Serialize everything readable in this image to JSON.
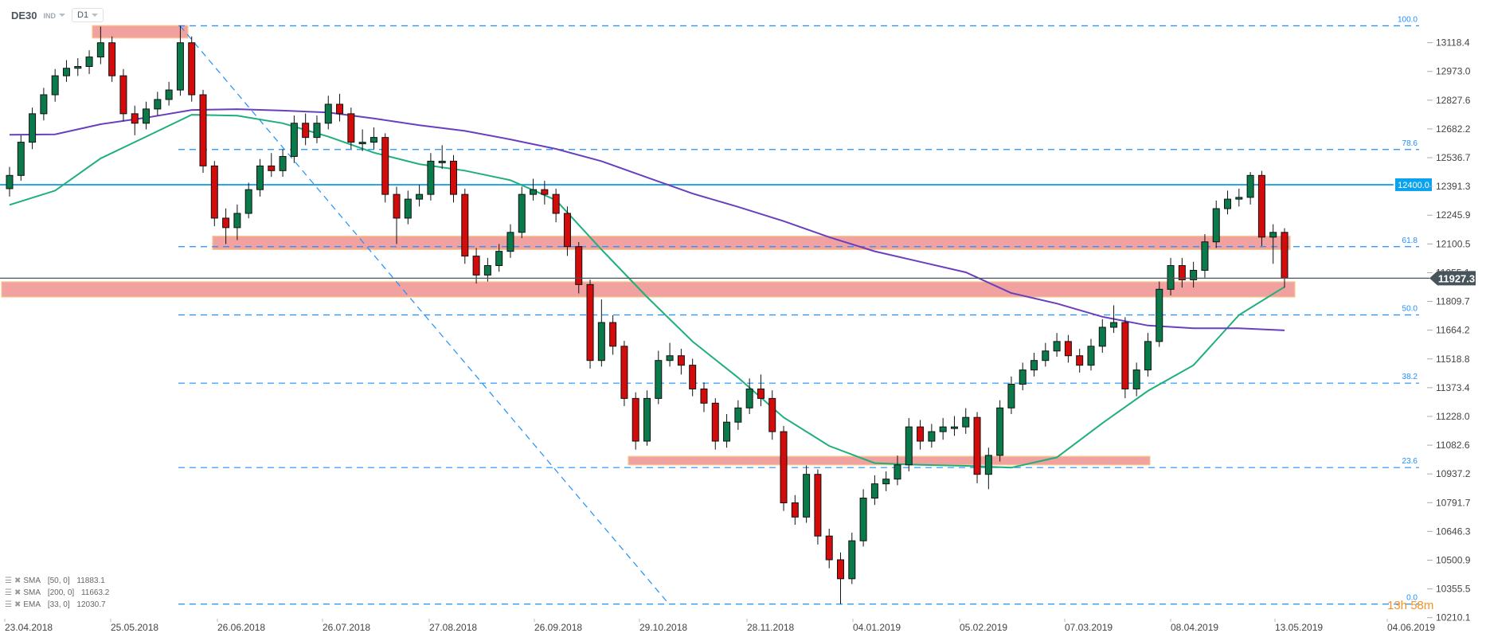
{
  "header": {
    "symbol": "DE30",
    "market": "IND",
    "timeframe": "D1"
  },
  "indicators": [
    {
      "label": "SMA",
      "params": "[50,  0]",
      "value": "11883.1",
      "color": "#1fb07a"
    },
    {
      "label": "SMA",
      "params": "[200,  0]",
      "value": "11663.2",
      "color": "#6a3fbf"
    },
    {
      "label": "EMA",
      "params": "[33,  0]",
      "value": "12030.7"
    }
  ],
  "countdown": "13h 58m",
  "colors": {
    "up": "#0b7a4b",
    "down": "#d30b0b",
    "fib": "#1e90ff",
    "level": "#29a9e8",
    "zone": "#f09c9a",
    "zone_border": "#f7c98a",
    "price_tag": "#47545c"
  },
  "chart_data": {
    "type": "candlestick",
    "title": "",
    "xlabel": "",
    "ylabel": "",
    "ylim": [
      10210.1,
      13118.4
    ],
    "grid": false,
    "x_tick_labels": [
      "23.04.2018",
      "25.05.2018",
      "26.06.2018",
      "26.07.2018",
      "27.08.2018",
      "26.09.2018",
      "29.10.2018",
      "28.11.2018",
      "04.01.2019",
      "05.02.2019",
      "07.03.2019",
      "08.04.2019",
      "13.05.2019",
      "04.06.2019"
    ],
    "y_tick_labels": [
      "13118.4",
      "12973.0",
      "12827.6",
      "12682.2",
      "12536.7",
      "12391.3",
      "12245.9",
      "12100.5",
      "11955.1",
      "11809.7",
      "11664.2",
      "11518.8",
      "11373.4",
      "11228.0",
      "11082.6",
      "10937.2",
      "10791.7",
      "10646.3",
      "10500.9",
      "10355.5",
      "10210.1"
    ],
    "current_price": "11927.3",
    "horizontal_level": {
      "value": 12400.0,
      "label": "12400.0"
    },
    "fibonacci": {
      "high": 13204,
      "low": 10279,
      "levels": [
        {
          "ratio": 1.0,
          "label": "100.0"
        },
        {
          "ratio": 0.786,
          "label": "78.6"
        },
        {
          "ratio": 0.618,
          "label": "61.8"
        },
        {
          "ratio": 0.5,
          "label": "50.0"
        },
        {
          "ratio": 0.382,
          "label": "38.2"
        },
        {
          "ratio": 0.236,
          "label": "23.6"
        },
        {
          "ratio": 0.0,
          "label": "0.0"
        }
      ]
    },
    "zones": [
      {
        "from": 13142,
        "to": 13205
      },
      {
        "from": 12072,
        "to": 12140
      },
      {
        "from": 11832,
        "to": 11909
      },
      {
        "from": 10983,
        "to": 11026
      }
    ],
    "ohlc": [
      [
        12380,
        12490,
        12340,
        12447
      ],
      [
        12447,
        12650,
        12420,
        12615
      ],
      [
        12615,
        12790,
        12580,
        12759
      ],
      [
        12759,
        12890,
        12725,
        12855
      ],
      [
        12855,
        12985,
        12820,
        12951
      ],
      [
        12951,
        13030,
        12920,
        12989
      ],
      [
        12989,
        13040,
        12950,
        12998
      ],
      [
        12998,
        13080,
        12960,
        13046
      ],
      [
        13046,
        13200,
        13010,
        13118
      ],
      [
        13118,
        13150,
        12920,
        12951
      ],
      [
        12951,
        12985,
        12720,
        12759
      ],
      [
        12759,
        12800,
        12650,
        12711
      ],
      [
        12711,
        12820,
        12680,
        12783
      ],
      [
        12783,
        12870,
        12750,
        12831
      ],
      [
        12831,
        12920,
        12800,
        12879
      ],
      [
        12879,
        13204,
        12850,
        13118
      ],
      [
        13118,
        13150,
        12820,
        12855
      ],
      [
        12855,
        12880,
        12460,
        12495
      ],
      [
        12495,
        12520,
        12190,
        12231
      ],
      [
        12231,
        12280,
        12100,
        12183
      ],
      [
        12183,
        12300,
        12120,
        12255
      ],
      [
        12255,
        12410,
        12230,
        12375
      ],
      [
        12375,
        12530,
        12340,
        12495
      ],
      [
        12495,
        12560,
        12440,
        12471
      ],
      [
        12471,
        12580,
        12440,
        12543
      ],
      [
        12543,
        12750,
        12510,
        12711
      ],
      [
        12711,
        12760,
        12600,
        12639
      ],
      [
        12639,
        12750,
        12610,
        12711
      ],
      [
        12711,
        12850,
        12680,
        12807
      ],
      [
        12807,
        12860,
        12720,
        12759
      ],
      [
        12759,
        12790,
        12580,
        12615
      ],
      [
        12615,
        12680,
        12570,
        12615
      ],
      [
        12615,
        12690,
        12580,
        12639
      ],
      [
        12639,
        12660,
        12310,
        12351
      ],
      [
        12351,
        12390,
        12100,
        12231
      ],
      [
        12231,
        12370,
        12200,
        12327
      ],
      [
        12327,
        12400,
        12290,
        12351
      ],
      [
        12351,
        12560,
        12320,
        12519
      ],
      [
        12519,
        12600,
        12480,
        12519
      ],
      [
        12519,
        12550,
        12310,
        12351
      ],
      [
        12351,
        12380,
        12000,
        12039
      ],
      [
        12039,
        12080,
        11900,
        11943
      ],
      [
        11943,
        12030,
        11910,
        11991
      ],
      [
        11991,
        12100,
        11960,
        12063
      ],
      [
        12063,
        12200,
        12030,
        12159
      ],
      [
        12159,
        12390,
        12130,
        12351
      ],
      [
        12351,
        12430,
        12320,
        12375
      ],
      [
        12375,
        12420,
        12300,
        12351
      ],
      [
        12351,
        12380,
        12210,
        12255
      ],
      [
        12255,
        12290,
        12040,
        12087
      ],
      [
        12087,
        12110,
        11850,
        11895
      ],
      [
        11895,
        11920,
        11470,
        11511
      ],
      [
        11511,
        11820,
        11480,
        11703
      ],
      [
        11703,
        11740,
        11540,
        11583
      ],
      [
        11583,
        11610,
        11280,
        11319
      ],
      [
        11319,
        11350,
        11060,
        11103
      ],
      [
        11103,
        11360,
        11080,
        11319
      ],
      [
        11319,
        11560,
        11290,
        11511
      ],
      [
        11511,
        11600,
        11480,
        11535
      ],
      [
        11535,
        11570,
        11440,
        11487
      ],
      [
        11487,
        11520,
        11330,
        11367
      ],
      [
        11367,
        11400,
        11250,
        11295
      ],
      [
        11295,
        11320,
        11060,
        11103
      ],
      [
        11103,
        11240,
        11070,
        11199
      ],
      [
        11199,
        11310,
        11160,
        11271
      ],
      [
        11271,
        11420,
        11240,
        11367
      ],
      [
        11367,
        11440,
        11280,
        11319
      ],
      [
        11319,
        11360,
        11110,
        11151
      ],
      [
        11151,
        11180,
        10750,
        10791
      ],
      [
        10791,
        10830,
        10680,
        10719
      ],
      [
        10719,
        10980,
        10690,
        10935
      ],
      [
        10935,
        10960,
        10580,
        10623
      ],
      [
        10623,
        10660,
        10460,
        10503
      ],
      [
        10503,
        10540,
        10279,
        10407
      ],
      [
        10407,
        10640,
        10380,
        10599
      ],
      [
        10599,
        10860,
        10570,
        10815
      ],
      [
        10815,
        10930,
        10780,
        10887
      ],
      [
        10887,
        10950,
        10850,
        10911
      ],
      [
        10911,
        11030,
        10880,
        10983
      ],
      [
        10983,
        11220,
        10950,
        11175
      ],
      [
        11175,
        11210,
        11060,
        11103
      ],
      [
        11103,
        11190,
        11070,
        11151
      ],
      [
        11151,
        11220,
        11110,
        11175
      ],
      [
        11175,
        11230,
        11130,
        11175
      ],
      [
        11175,
        11270,
        11140,
        11223
      ],
      [
        11223,
        11250,
        10890,
        10935
      ],
      [
        10935,
        11070,
        10860,
        11031
      ],
      [
        11031,
        11310,
        11000,
        11271
      ],
      [
        11271,
        11430,
        11240,
        11391
      ],
      [
        11391,
        11500,
        11360,
        11463
      ],
      [
        11463,
        11550,
        11430,
        11511
      ],
      [
        11511,
        11600,
        11480,
        11559
      ],
      [
        11559,
        11650,
        11530,
        11607
      ],
      [
        11607,
        11640,
        11500,
        11535
      ],
      [
        11535,
        11570,
        11450,
        11487
      ],
      [
        11487,
        11620,
        11460,
        11583
      ],
      [
        11583,
        11720,
        11550,
        11679
      ],
      [
        11679,
        11790,
        11650,
        11703
      ],
      [
        11703,
        11730,
        11320,
        11367
      ],
      [
        11367,
        11500,
        11330,
        11463
      ],
      [
        11463,
        11650,
        11430,
        11607
      ],
      [
        11607,
        11910,
        11580,
        11871
      ],
      [
        11871,
        12030,
        11840,
        11991
      ],
      [
        11991,
        12030,
        11880,
        11919
      ],
      [
        11919,
        12010,
        11880,
        11967
      ],
      [
        11967,
        12150,
        11930,
        12111
      ],
      [
        12111,
        12320,
        12080,
        12279
      ],
      [
        12279,
        12370,
        12250,
        12327
      ],
      [
        12327,
        12380,
        12290,
        12336
      ],
      [
        12336,
        12464,
        12300,
        12447
      ],
      [
        12447,
        12470,
        12090,
        12135
      ],
      [
        12135,
        12200,
        12000,
        12159
      ],
      [
        12159,
        12180,
        11880,
        11927.3
      ]
    ],
    "series": [
      {
        "name": "SMA [50, 0]",
        "values": [
          12298,
          12370,
          12533,
          12643,
          12754,
          12749,
          12711,
          12643,
          12562,
          12504,
          12471,
          12423,
          12322,
          12072,
          11832,
          11607,
          11424,
          11223,
          11079,
          10992,
          10983,
          10978,
          10969,
          11021,
          11194,
          11357,
          11487,
          11741,
          11883.1
        ]
      },
      {
        "name": "SMA [200, 0]",
        "values": [
          12653,
          12655,
          12706,
          12739,
          12778,
          12782,
          12775,
          12765,
          12735,
          12701,
          12672,
          12629,
          12581,
          12519,
          12437,
          12355,
          12288,
          12216,
          12135,
          12063,
          12010,
          11957,
          11852,
          11799,
          11732,
          11688,
          11674,
          11674,
          11663.2
        ]
      }
    ]
  }
}
